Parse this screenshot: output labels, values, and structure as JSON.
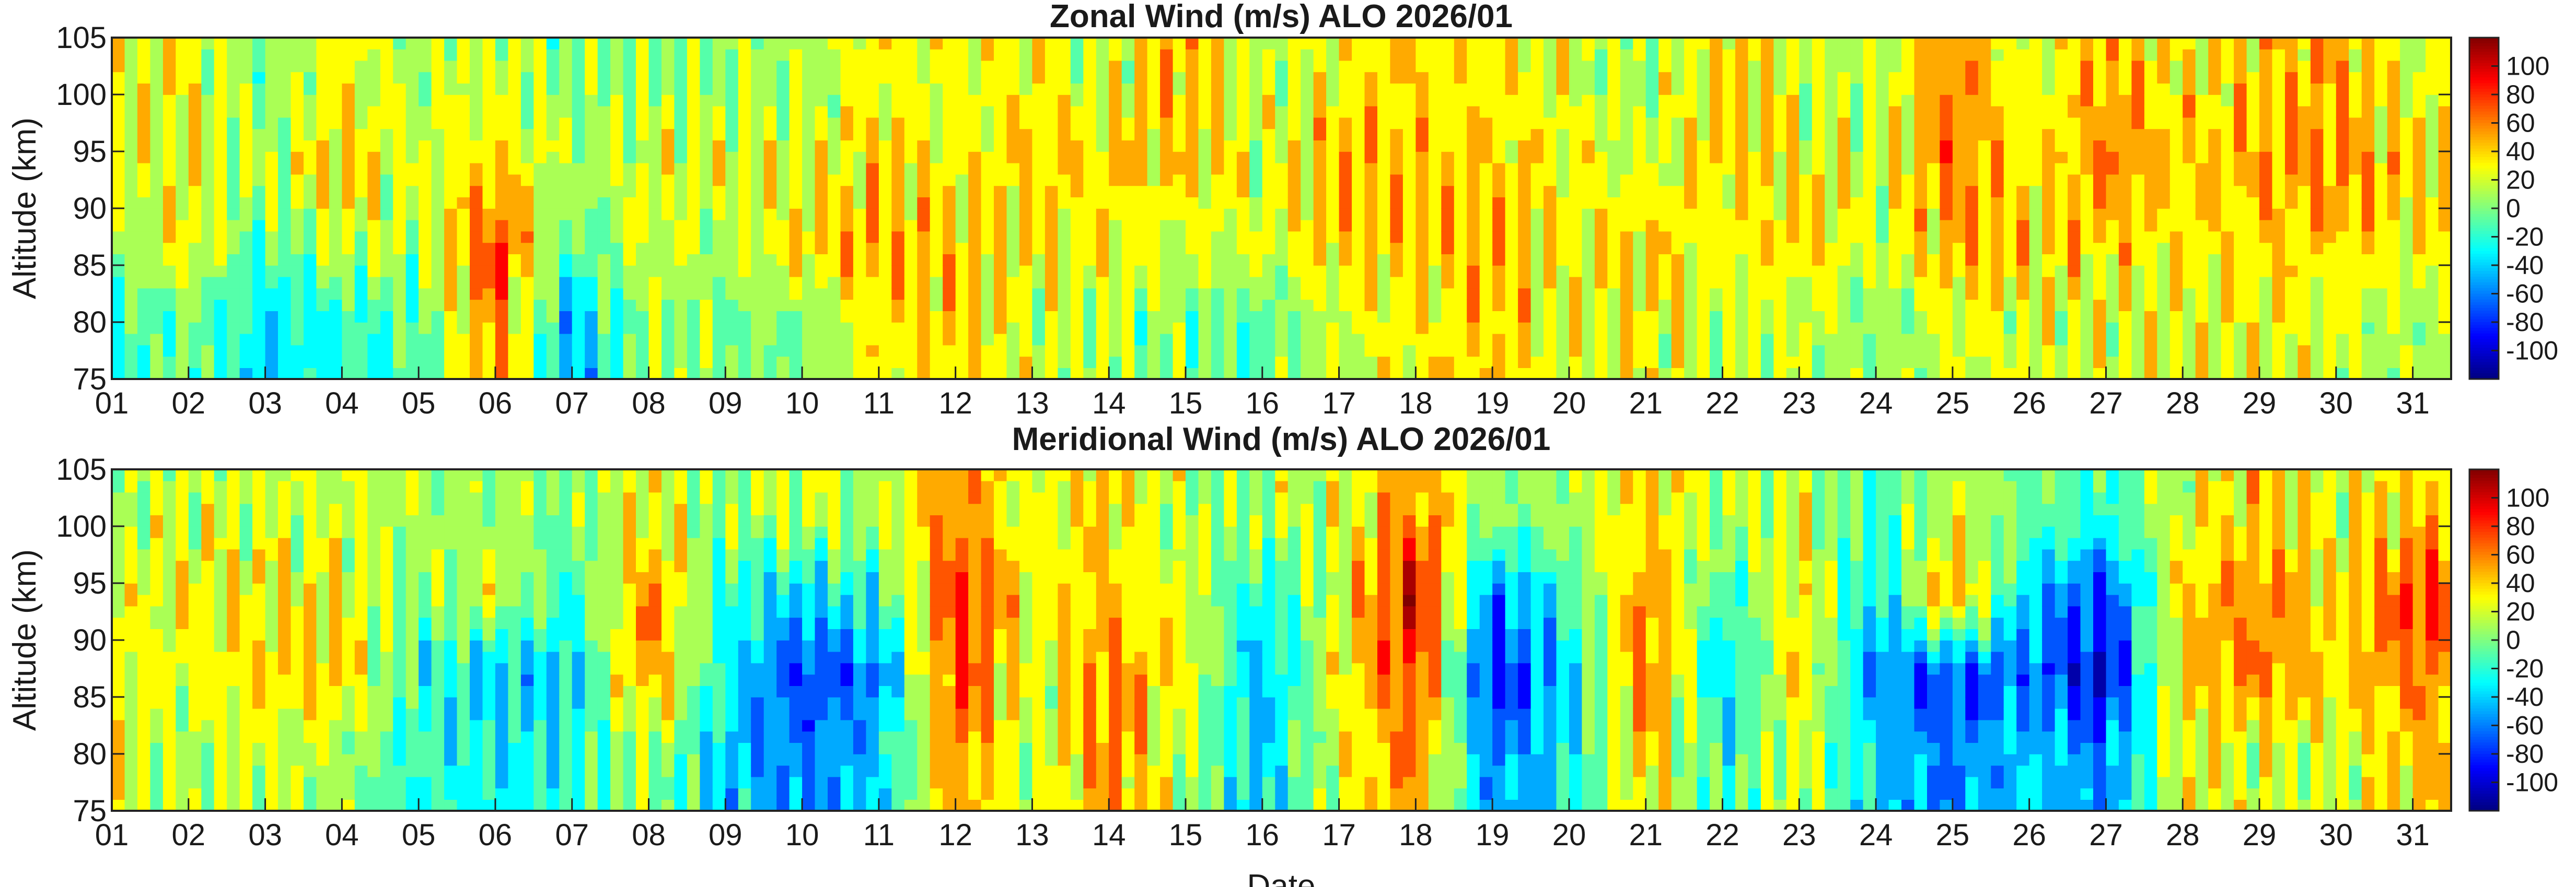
{
  "chart_data": [
    {
      "type": "heatmap",
      "title": "Zonal Wind (m/s) ALO 2026/01",
      "xlabel": "",
      "ylabel": "Altitude (km)",
      "xlim": [
        1,
        31.5
      ],
      "ylim": [
        75,
        105
      ],
      "x_tick_labels": [
        "01",
        "02",
        "03",
        "04",
        "05",
        "06",
        "07",
        "08",
        "09",
        "10",
        "11",
        "12",
        "13",
        "14",
        "15",
        "16",
        "17",
        "18",
        "19",
        "20",
        "21",
        "22",
        "23",
        "24",
        "25",
        "26",
        "27",
        "28",
        "29",
        "30",
        "31"
      ],
      "y_ticks": [
        75,
        80,
        85,
        90,
        95,
        100,
        105
      ],
      "colorbar": {
        "range": [
          -120,
          120
        ],
        "ticks": [
          -100,
          -80,
          -60,
          -40,
          -20,
          0,
          20,
          40,
          60,
          80,
          100
        ],
        "colormap": "jet"
      },
      "altitudes_km": [
        80,
        87,
        94,
        101
      ],
      "days": [
        1,
        2,
        3,
        4,
        5,
        6,
        7,
        8,
        9,
        10,
        11,
        12,
        13,
        14,
        15,
        16,
        17,
        18,
        19,
        20,
        21,
        22,
        23,
        24,
        25,
        26,
        27,
        28,
        29,
        30,
        31
      ],
      "values": [
        [
          -20,
          0,
          20,
          20
        ],
        [
          0,
          30,
          30,
          30
        ],
        [
          -40,
          -10,
          10,
          0
        ],
        [
          -20,
          20,
          40,
          30
        ],
        [
          -10,
          10,
          20,
          10
        ],
        [
          60,
          80,
          40,
          20
        ],
        [
          -50,
          -10,
          10,
          0
        ],
        [
          10,
          20,
          20,
          10
        ],
        [
          0,
          10,
          20,
          10
        ],
        [
          0,
          40,
          20,
          10
        ],
        [
          30,
          50,
          40,
          30
        ],
        [
          40,
          40,
          30,
          20
        ],
        [
          20,
          30,
          40,
          30
        ],
        [
          10,
          30,
          40,
          20
        ],
        [
          0,
          20,
          40,
          50
        ],
        [
          -10,
          20,
          20,
          10
        ],
        [
          20,
          40,
          50,
          30
        ],
        [
          30,
          40,
          40,
          40
        ],
        [
          40,
          50,
          40,
          30
        ],
        [
          20,
          30,
          30,
          20
        ],
        [
          30,
          40,
          20,
          10
        ],
        [
          10,
          30,
          40,
          40
        ],
        [
          20,
          40,
          30,
          20
        ],
        [
          0,
          20,
          20,
          10
        ],
        [
          20,
          50,
          60,
          60
        ],
        [
          20,
          40,
          30,
          20
        ],
        [
          20,
          40,
          60,
          50
        ],
        [
          20,
          30,
          40,
          30
        ],
        [
          30,
          40,
          50,
          40
        ],
        [
          20,
          40,
          60,
          50
        ],
        [
          10,
          30,
          40,
          20
        ]
      ]
    },
    {
      "type": "heatmap",
      "title": "Meridional Wind (m/s) ALO 2026/01",
      "xlabel": "Date",
      "ylabel": "Altitude (km)",
      "xlim": [
        1,
        31.5
      ],
      "ylim": [
        75,
        105
      ],
      "x_tick_labels": [
        "01",
        "02",
        "03",
        "04",
        "05",
        "06",
        "07",
        "08",
        "09",
        "10",
        "11",
        "12",
        "13",
        "14",
        "15",
        "16",
        "17",
        "18",
        "19",
        "20",
        "21",
        "22",
        "23",
        "24",
        "25",
        "26",
        "27",
        "28",
        "29",
        "30",
        "31"
      ],
      "y_ticks": [
        75,
        80,
        85,
        90,
        95,
        100,
        105
      ],
      "colorbar": {
        "range": [
          -120,
          120
        ],
        "ticks": [
          -100,
          -80,
          -60,
          -40,
          -20,
          0,
          20,
          40,
          60,
          80,
          100
        ],
        "colormap": "jet"
      },
      "altitudes_km": [
        80,
        87,
        94,
        101
      ],
      "days": [
        1,
        2,
        3,
        4,
        5,
        6,
        7,
        8,
        9,
        10,
        11,
        12,
        13,
        14,
        15,
        16,
        17,
        18,
        19,
        20,
        21,
        22,
        23,
        24,
        25,
        26,
        27,
        28,
        29,
        30,
        31
      ],
      "values": [
        [
          20,
          30,
          20,
          10
        ],
        [
          10,
          20,
          30,
          20
        ],
        [
          20,
          40,
          30,
          20
        ],
        [
          10,
          40,
          30,
          20
        ],
        [
          -20,
          -20,
          0,
          10
        ],
        [
          -30,
          -40,
          20,
          10
        ],
        [
          -20,
          -40,
          -20,
          0
        ],
        [
          10,
          60,
          60,
          30
        ],
        [
          -40,
          -30,
          -20,
          0
        ],
        [
          -60,
          -80,
          -40,
          20
        ],
        [
          -40,
          -60,
          -20,
          10
        ],
        [
          60,
          80,
          80,
          60
        ],
        [
          10,
          20,
          30,
          20
        ],
        [
          60,
          60,
          40,
          40
        ],
        [
          10,
          30,
          20,
          10
        ],
        [
          -40,
          -50,
          -30,
          10
        ],
        [
          20,
          30,
          20,
          20
        ],
        [
          60,
          80,
          100,
          60
        ],
        [
          -60,
          -90,
          -60,
          0
        ],
        [
          -30,
          -40,
          -20,
          10
        ],
        [
          40,
          70,
          60,
          40
        ],
        [
          -20,
          -40,
          -20,
          10
        ],
        [
          20,
          40,
          40,
          20
        ],
        [
          -40,
          -60,
          -40,
          -20
        ],
        [
          -60,
          -80,
          60,
          20
        ],
        [
          -40,
          -60,
          -40,
          0
        ],
        [
          -60,
          -100,
          -80,
          -20
        ],
        [
          30,
          40,
          40,
          20
        ],
        [
          20,
          60,
          60,
          40
        ],
        [
          20,
          40,
          30,
          20
        ],
        [
          40,
          60,
          80,
          40
        ]
      ]
    }
  ]
}
